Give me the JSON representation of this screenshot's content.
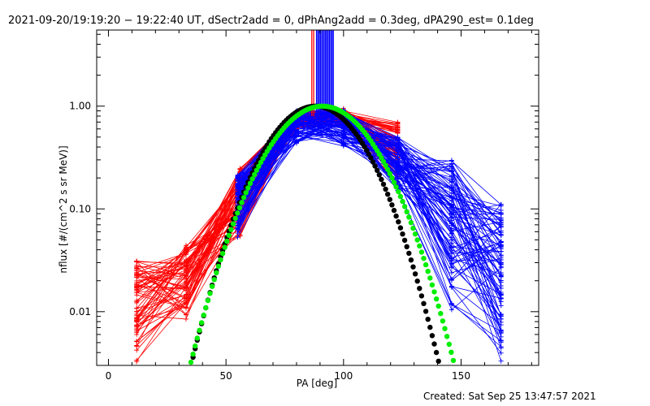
{
  "chart_data": {
    "type": "line",
    "title": "2021-09-20/19:19:20 − 19:22:40 UT, dSectr2add = 0, dPhAng2add = 0.3deg, dPA290_est=  0.1deg",
    "xlabel": "PA [deg]",
    "ylabel": "nflux [#/(cm^2 s sr MeV)]",
    "xlim": [
      -5,
      183
    ],
    "ylim": [
      0.003,
      5.5
    ],
    "yscale": "log",
    "x_ticks": [
      0,
      50,
      100,
      150
    ],
    "x_tick_labels": [
      "0",
      "50",
      "100",
      "150"
    ],
    "y_ticks": [
      0.01,
      0.1,
      1.0
    ],
    "y_tick_labels": [
      "0.01",
      "0.10",
      "1.00"
    ],
    "footer": "Created: Sat Sep 25 13:47:57 2021",
    "colors": {
      "red_series": "#ff0000",
      "blue_series": "#0000ff",
      "black_fit": "#000000",
      "green_fit": "#00ee00"
    },
    "series": [
      {
        "color": "red",
        "style": "plus-markers-lines",
        "count": 70,
        "x": [
          12,
          33,
          56,
          80,
          100,
          123
        ],
        "y_range": [
          [
            0.003,
            0.032
          ],
          [
            0.008,
            0.045
          ],
          [
            0.05,
            0.25
          ],
          [
            0.6,
            0.9
          ],
          [
            0.65,
            0.95
          ],
          [
            0.15,
            0.7
          ]
        ]
      },
      {
        "color": "blue",
        "style": "plus-markers-lines",
        "count": 90,
        "x": [
          55,
          80,
          100,
          123,
          146,
          167
        ],
        "y_range": [
          [
            0.05,
            0.22
          ],
          [
            0.42,
            0.92
          ],
          [
            0.4,
            0.93
          ],
          [
            0.15,
            0.5
          ],
          [
            0.01,
            0.3
          ],
          [
            0.003,
            0.12
          ]
        ]
      },
      {
        "color": "black",
        "style": "thick-dotted-fit",
        "shape": "gaussian",
        "peak": 1.0,
        "center": 88,
        "sigma": 15.5
      },
      {
        "color": "green",
        "style": "thick-dotted-fit",
        "shape": "gaussian",
        "peak": 1.0,
        "center": 91,
        "sigma": 16.5
      }
    ]
  }
}
